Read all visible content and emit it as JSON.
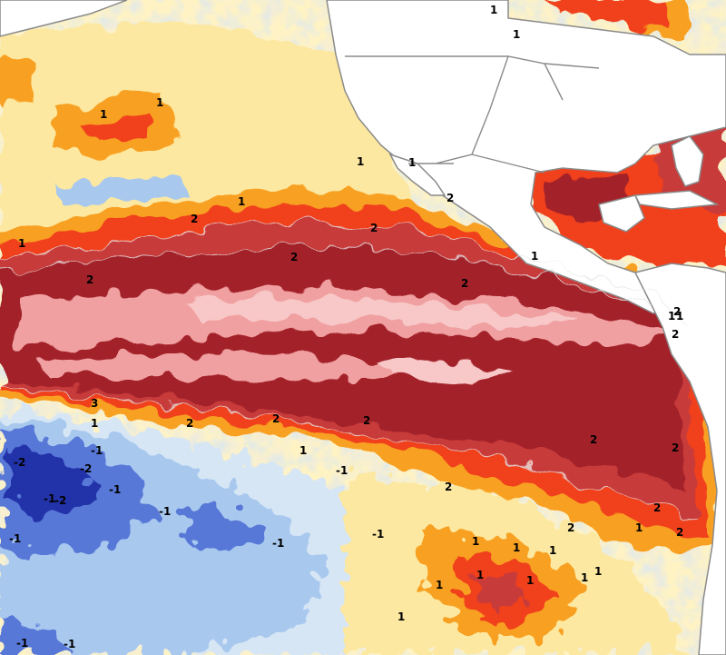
{
  "map": {
    "palette": {
      "deep_red": "#a3202c",
      "red": "#c83a3a",
      "pink": "#f0a0a0",
      "light_pink": "#f8c8c8",
      "orange_red": "#f0401a",
      "orange": "#f8a020",
      "yellow": "#fce8a0",
      "pale_yellow": "#fff3c4",
      "light_gray": "#e8e8e8",
      "pale_blue": "#d6e6f5",
      "light_blue": "#a8c8ee",
      "blue": "#5878d8",
      "dark_blue": "#2030a8",
      "land": "#ffffff",
      "coast": "#8a8a8a"
    },
    "contour_labels": [
      {
        "text": "1"
      },
      {
        "text": "1"
      },
      {
        "text": "1"
      },
      {
        "text": "1"
      },
      {
        "text": "1"
      },
      {
        "text": "1"
      },
      {
        "text": "2"
      },
      {
        "text": "2"
      },
      {
        "text": "1"
      },
      {
        "text": "2"
      },
      {
        "text": "1"
      },
      {
        "text": "2"
      },
      {
        "text": "2"
      },
      {
        "text": "2"
      },
      {
        "text": "1"
      },
      {
        "text": "2"
      },
      {
        "text": "1"
      },
      {
        "text": "1"
      },
      {
        "text": "2"
      },
      {
        "text": "2"
      },
      {
        "text": "-1"
      },
      {
        "text": "-2"
      },
      {
        "text": "3"
      },
      {
        "text": "1"
      },
      {
        "text": "2"
      },
      {
        "text": "2"
      },
      {
        "text": "1"
      },
      {
        "text": "-1"
      },
      {
        "text": "-2"
      },
      {
        "text": "-2"
      },
      {
        "text": "2"
      },
      {
        "text": "-1"
      },
      {
        "text": "-1"
      },
      {
        "text": "-1"
      },
      {
        "text": "-1"
      },
      {
        "text": "-1"
      },
      {
        "text": "-1"
      },
      {
        "text": "1"
      },
      {
        "text": "-1"
      },
      {
        "text": "2"
      },
      {
        "text": "2"
      },
      {
        "text": "2"
      },
      {
        "text": "2"
      },
      {
        "text": "1"
      },
      {
        "text": "1"
      },
      {
        "text": "1"
      },
      {
        "text": "1"
      },
      {
        "text": "1"
      },
      {
        "text": "1"
      },
      {
        "text": "1"
      },
      {
        "text": "1"
      },
      {
        "text": "2"
      },
      {
        "text": "-1"
      },
      {
        "text": "1"
      }
    ]
  }
}
